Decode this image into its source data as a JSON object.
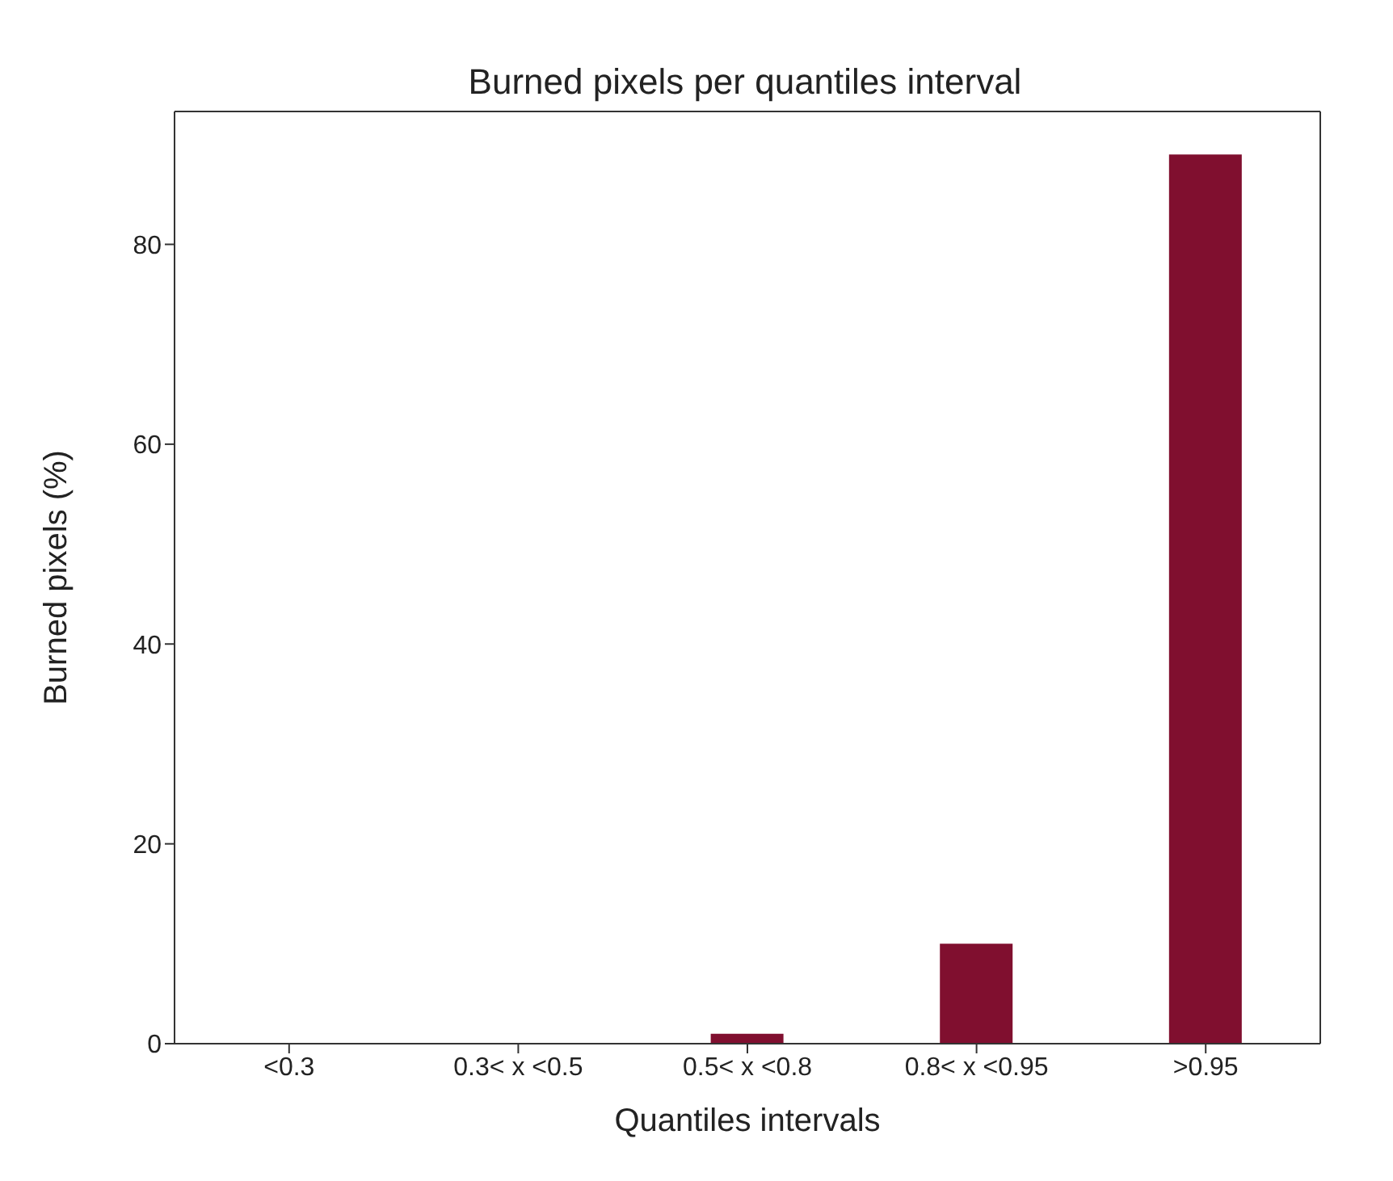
{
  "chart_data": {
    "type": "bar",
    "title": "Burned pixels per quantiles interval",
    "xlabel": "Quantiles intervals",
    "ylabel": "Burned pixels (%)",
    "categories": [
      "<0.3",
      "0.3< x <0.5",
      "0.5< x <0.8",
      "0.8< x <0.95",
      ">0.95"
    ],
    "values": [
      0,
      0,
      1,
      10,
      89
    ],
    "color": "#800f2f",
    "ylim": [
      0,
      93.3
    ],
    "yticks": [
      0,
      20,
      40,
      60,
      80
    ],
    "grid": false,
    "legend": false
  }
}
